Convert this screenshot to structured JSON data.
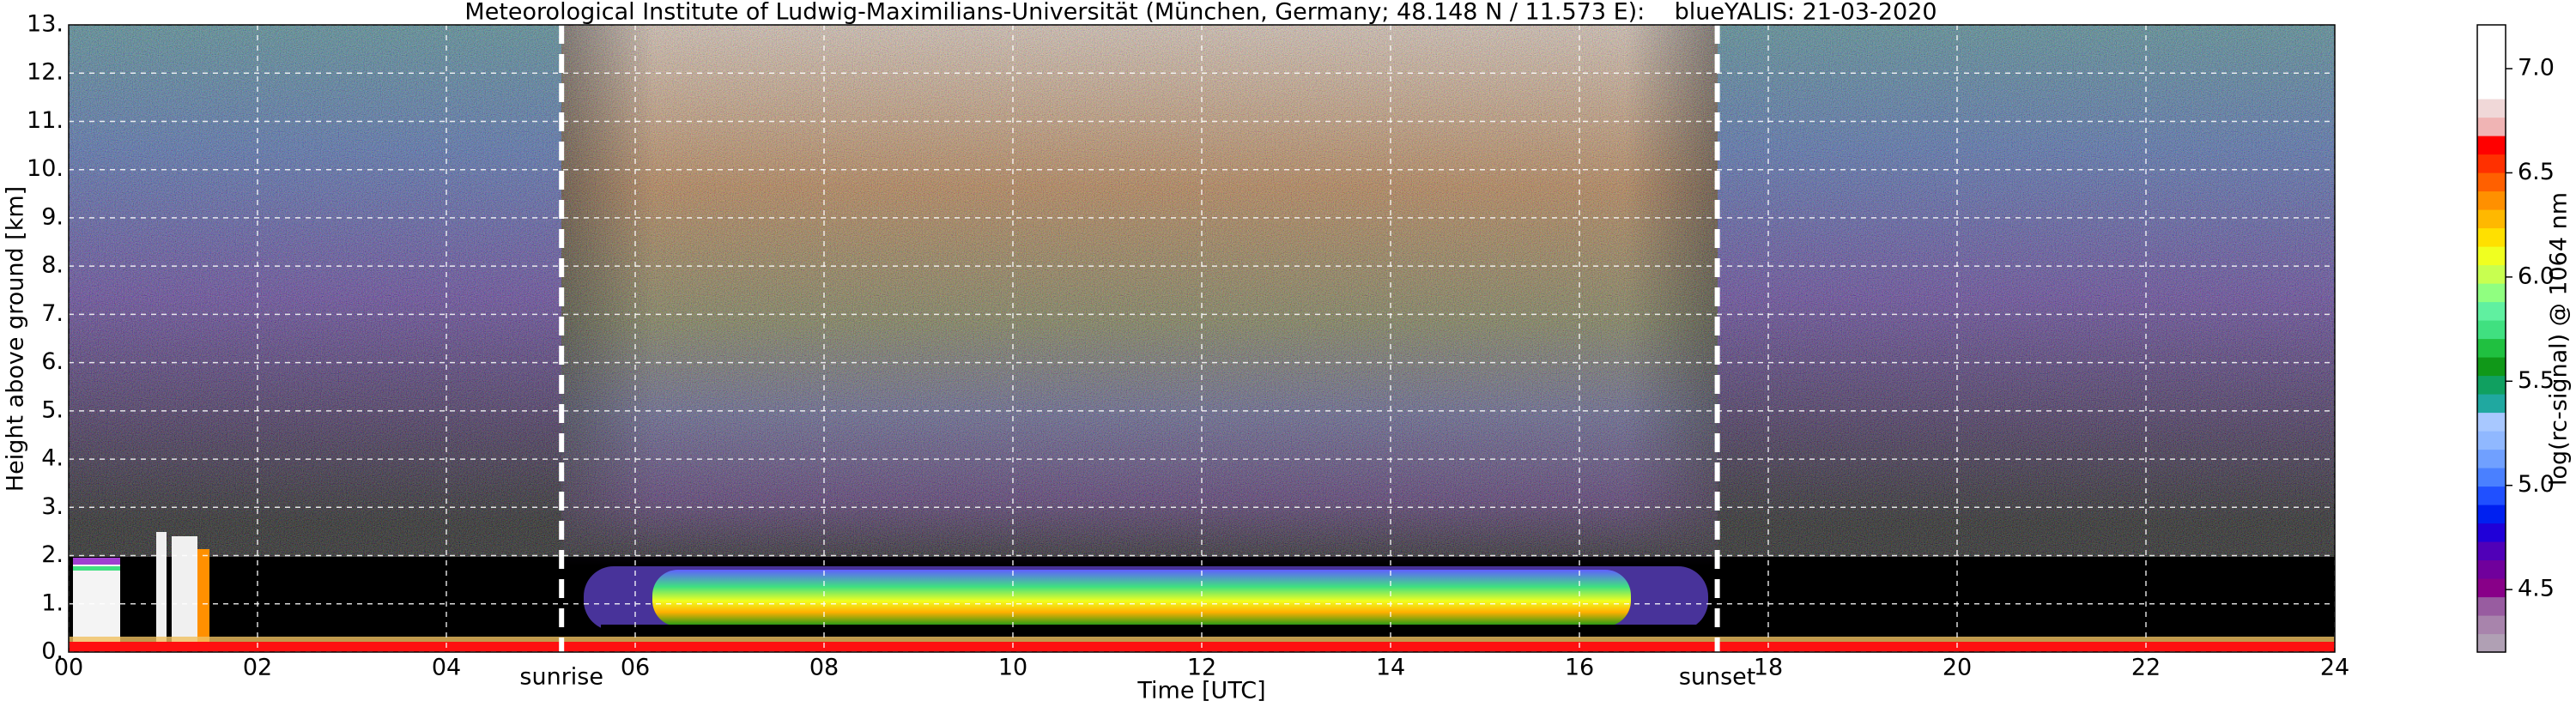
{
  "chart_data": {
    "type": "heatmap",
    "title": "Meteorological Institute of Ludwig-Maximilians-Universität (München, Germany; 48.148 N / 11.573 E):    blueYALIS: 21-03-2020",
    "xlabel": "Time [UTC]",
    "ylabel": "Height above ground [km]",
    "xlim": [
      0,
      24
    ],
    "xticks": [
      {
        "value": 0,
        "label": "00"
      },
      {
        "value": 2,
        "label": "02"
      },
      {
        "value": 4,
        "label": "04"
      },
      {
        "value": 6,
        "label": "06"
      },
      {
        "value": 8,
        "label": "08"
      },
      {
        "value": 10,
        "label": "10"
      },
      12,
      14,
      16,
      18,
      20,
      22,
      24
    ],
    "ylim": [
      0,
      13
    ],
    "yticks": [
      {
        "value": 0,
        "label": "0."
      },
      {
        "value": 1,
        "label": "1."
      },
      {
        "value": 2,
        "label": "2."
      },
      {
        "value": 3,
        "label": "3."
      },
      {
        "value": 4,
        "label": "4."
      },
      {
        "value": 5,
        "label": "5."
      },
      {
        "value": 6,
        "label": "6."
      },
      {
        "value": 7,
        "label": "7."
      },
      {
        "value": 8,
        "label": "8."
      },
      {
        "value": 9,
        "label": "9."
      },
      {
        "value": 10,
        "label": "10."
      },
      {
        "value": 11,
        "label": "11."
      },
      {
        "value": 12,
        "label": "12."
      },
      {
        "value": 13,
        "label": "13."
      }
    ],
    "grid": true,
    "annotations": [
      {
        "text": "sunrise",
        "x": 5.22
      },
      {
        "text": "sunset",
        "x": 17.46
      }
    ],
    "colorbar": {
      "label": "log(rc-signal) @ 1064 nm",
      "lim": [
        4.2,
        7.21
      ],
      "ticks": [
        4.5,
        {
          "value": 5,
          "label": "5.0"
        },
        5.5,
        {
          "value": 6,
          "label": "6.0"
        },
        6.5,
        {
          "value": 7,
          "label": "7.0"
        }
      ],
      "colors": [
        "#b0a0b4",
        "#a884ac",
        "#985ca0",
        "#880088",
        "#70009c",
        "#5000b8",
        "#2000d8",
        "#0020f0",
        "#2050ff",
        "#4a80ff",
        "#70a0ff",
        "#90b8ff",
        "#a8c8ff",
        "#20a8a0",
        "#10a060",
        "#109818",
        "#20c040",
        "#40e080",
        "#60f0a0",
        "#90ff80",
        "#c8ff50",
        "#f0ff20",
        "#ffe000",
        "#ffb800",
        "#ff9000",
        "#ff6000",
        "#ff3000",
        "#ff0000",
        "#f0b4b4",
        "#f0d8d8",
        "#ffffff",
        "#ffffff",
        "#ffffff",
        "#ffffff"
      ]
    }
  }
}
